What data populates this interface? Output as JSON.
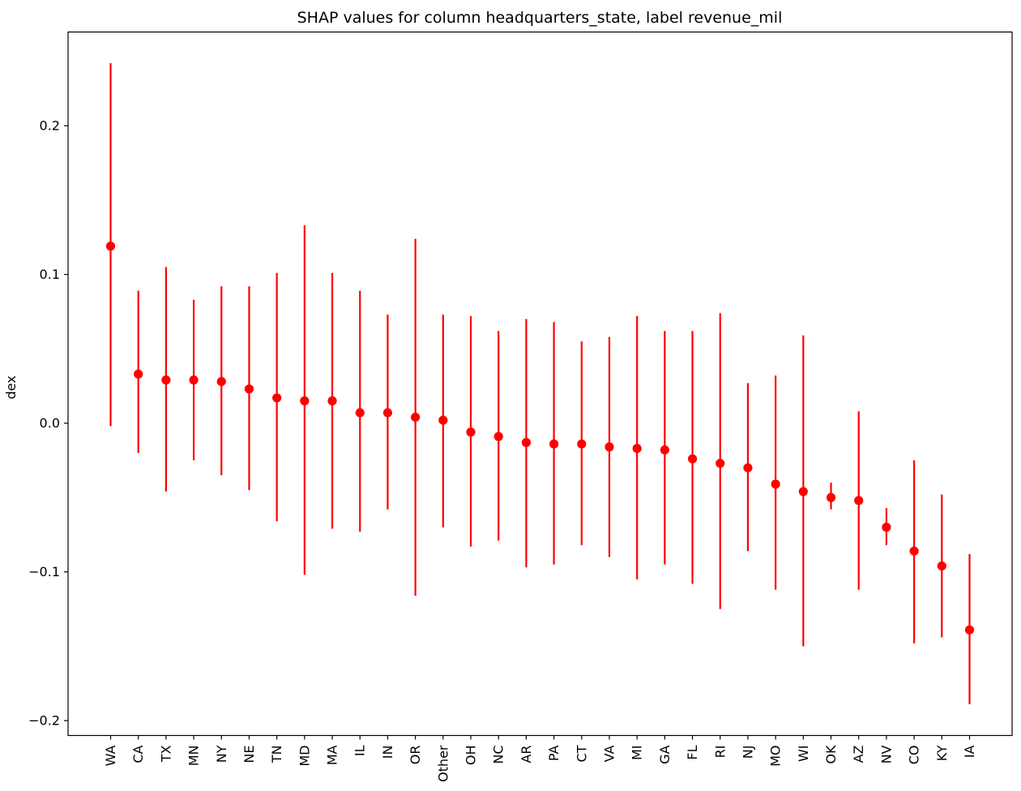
{
  "chart_data": {
    "type": "scatter",
    "title": "SHAP values for column headquarters_state, label revenue_mil",
    "xlabel": "",
    "ylabel": "dex",
    "ylim": [
      -0.21,
      0.263
    ],
    "yticks": [
      -0.2,
      -0.1,
      0.0,
      0.1,
      0.2
    ],
    "ytick_labels": [
      "−0.2",
      "−0.1",
      "0.0",
      "0.1",
      "0.2"
    ],
    "grid": false,
    "color": "#ff0000",
    "categories": [
      "WA",
      "CA",
      "TX",
      "MN",
      "NY",
      "NE",
      "TN",
      "MD",
      "MA",
      "IL",
      "IN",
      "OR",
      "Other",
      "OH",
      "NC",
      "AR",
      "PA",
      "CT",
      "VA",
      "MI",
      "GA",
      "FL",
      "RI",
      "NJ",
      "MO",
      "WI",
      "OK",
      "AZ",
      "NV",
      "CO",
      "KY",
      "IA"
    ],
    "values": [
      0.119,
      0.033,
      0.029,
      0.029,
      0.028,
      0.023,
      0.017,
      0.015,
      0.015,
      0.007,
      0.007,
      0.004,
      0.002,
      -0.006,
      -0.009,
      -0.013,
      -0.014,
      -0.014,
      -0.016,
      -0.017,
      -0.018,
      -0.024,
      -0.027,
      -0.03,
      -0.041,
      -0.046,
      -0.05,
      -0.052,
      -0.07,
      -0.086,
      -0.096,
      -0.139
    ],
    "lower": [
      -0.002,
      -0.02,
      -0.046,
      -0.025,
      -0.035,
      -0.045,
      -0.066,
      -0.102,
      -0.071,
      -0.073,
      -0.058,
      -0.116,
      -0.07,
      -0.083,
      -0.079,
      -0.097,
      -0.095,
      -0.082,
      -0.09,
      -0.105,
      -0.095,
      -0.108,
      -0.125,
      -0.086,
      -0.112,
      -0.15,
      -0.058,
      -0.112,
      -0.082,
      -0.148,
      -0.144,
      -0.189
    ],
    "upper": [
      0.242,
      0.089,
      0.105,
      0.083,
      0.092,
      0.092,
      0.101,
      0.133,
      0.101,
      0.089,
      0.073,
      0.124,
      0.073,
      0.072,
      0.062,
      0.07,
      0.068,
      0.055,
      0.058,
      0.072,
      0.062,
      0.062,
      0.074,
      0.027,
      0.032,
      0.059,
      -0.04,
      0.008,
      -0.057,
      -0.025,
      -0.048,
      -0.088
    ]
  }
}
